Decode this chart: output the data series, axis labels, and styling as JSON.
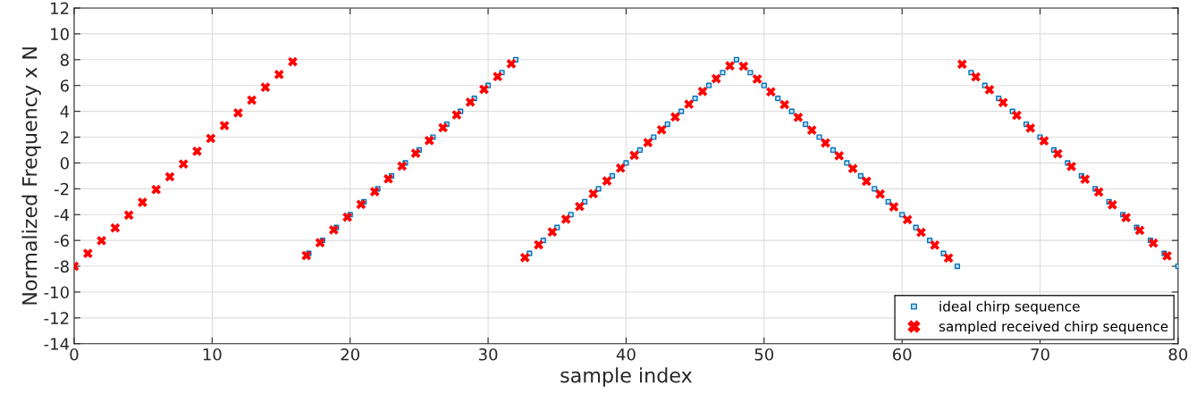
{
  "chart_data": {
    "type": "scatter",
    "xlabel": "sample index",
    "ylabel": "Normalized Frequency x N",
    "xlim": [
      0,
      80
    ],
    "xticks": [
      0,
      10,
      20,
      30,
      40,
      50,
      60,
      70,
      80
    ],
    "ylim": [
      -14,
      12
    ],
    "yticks": [
      -14,
      -12,
      -10,
      -8,
      -6,
      -4,
      -2,
      0,
      2,
      4,
      6,
      8,
      10,
      12
    ],
    "grid": true,
    "legend": "bottom right",
    "series": [
      {
        "name": "ideal chirp sequence",
        "color": "#0072bd",
        "marker": "square",
        "x": [
          17,
          18,
          19,
          20,
          21,
          22,
          23,
          24,
          25,
          26,
          27,
          28,
          29,
          30,
          31,
          32,
          33,
          34,
          35,
          36,
          37,
          38,
          39,
          40,
          41,
          42,
          43,
          44,
          45,
          46,
          47,
          48,
          49,
          50,
          51,
          52,
          53,
          54,
          55,
          56,
          57,
          58,
          59,
          60,
          61,
          62,
          63,
          64,
          65,
          66,
          67,
          68,
          69,
          70,
          71,
          72,
          73,
          74,
          75,
          76,
          77,
          78,
          79,
          80
        ],
        "values": [
          -7,
          -6,
          -5,
          -4,
          -3,
          -2,
          -1,
          0,
          1,
          2,
          3,
          4,
          5,
          6,
          7,
          8,
          -7,
          -6,
          -5,
          -4,
          -3,
          -2,
          -1,
          0,
          1,
          2,
          3,
          4,
          5,
          6,
          7,
          8,
          7,
          6,
          5,
          4,
          3,
          2,
          1,
          0,
          -1,
          -2,
          -3,
          -4,
          -5,
          -6,
          -7,
          -8,
          7,
          6,
          5,
          4,
          3,
          2,
          1,
          0,
          -1,
          -2,
          -3,
          -4,
          -5,
          -6,
          -7,
          -8
        ]
      },
      {
        "name": "sampled received chirp sequence",
        "color": "#ff0000",
        "marker": "cross",
        "x": [
          0,
          0.99,
          1.98,
          2.97,
          3.96,
          4.95,
          5.94,
          6.93,
          7.92,
          8.91,
          9.9,
          10.89,
          11.88,
          12.87,
          13.86,
          14.85,
          15.84,
          16.83,
          17.82,
          18.81,
          19.8,
          20.79,
          21.78,
          22.77,
          23.76,
          24.75,
          25.74,
          26.73,
          27.72,
          28.71,
          29.7,
          30.69,
          31.68,
          32.67,
          33.66,
          34.65,
          35.64,
          36.63,
          37.62,
          38.61,
          39.6,
          40.59,
          41.58,
          42.57,
          43.56,
          44.55,
          45.54,
          46.53,
          47.52,
          48.51,
          49.5,
          50.49,
          51.48,
          52.47,
          53.46,
          54.45,
          55.44,
          56.43,
          57.42,
          58.41,
          59.4,
          60.39,
          61.38,
          62.37,
          63.36,
          64.35,
          65.34,
          66.33,
          67.32,
          68.31,
          69.3,
          70.29,
          71.28,
          72.27,
          73.26,
          74.25,
          75.24,
          76.23,
          77.22,
          78.21,
          79.2
        ],
        "values": [
          -8,
          -7.01,
          -6.02,
          -5.03,
          -4.04,
          -3.05,
          -2.06,
          -1.07,
          -0.08,
          0.91,
          1.9,
          2.89,
          3.88,
          4.87,
          5.86,
          6.85,
          7.84,
          -7.17,
          -6.18,
          -5.19,
          -4.2,
          -3.21,
          -2.22,
          -1.23,
          -0.24,
          0.75,
          1.74,
          2.73,
          3.72,
          4.71,
          5.7,
          6.69,
          7.68,
          -7.33,
          -6.34,
          -5.35,
          -4.36,
          -3.37,
          -2.38,
          -1.39,
          -0.4,
          0.59,
          1.58,
          2.57,
          3.56,
          4.55,
          5.54,
          6.53,
          7.52,
          7.49,
          6.5,
          5.51,
          4.52,
          3.53,
          2.54,
          1.55,
          0.56,
          -0.43,
          -1.42,
          -2.41,
          -3.4,
          -4.39,
          -5.38,
          -6.37,
          -7.36,
          7.65,
          6.66,
          5.67,
          4.68,
          3.69,
          2.7,
          1.71,
          0.72,
          -0.27,
          -1.26,
          -2.25,
          -3.24,
          -4.23,
          -5.22,
          -6.21,
          -7.2
        ]
      }
    ]
  }
}
